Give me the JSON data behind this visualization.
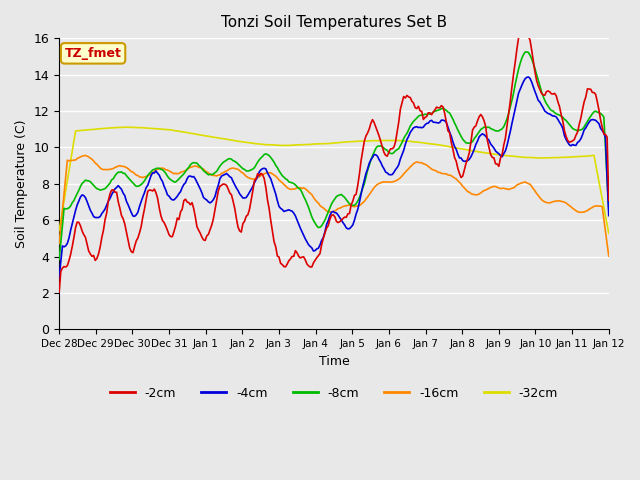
{
  "title": "Tonzi Soil Temperatures Set B",
  "xlabel": "Time",
  "ylabel": "Soil Temperature (C)",
  "ylim": [
    0,
    16
  ],
  "yticks": [
    0,
    2,
    4,
    6,
    8,
    10,
    12,
    14,
    16
  ],
  "annotation_label": "TZ_fmet",
  "annotation_bg": "#ffffcc",
  "annotation_border": "#cc9900",
  "annotation_text_color": "#cc0000",
  "series_colors": {
    "-2cm": "#dd0000",
    "-4cm": "#0000dd",
    "-8cm": "#00bb00",
    "-16cm": "#ff8800",
    "-32cm": "#dddd00"
  },
  "legend_labels": [
    "-2cm",
    "-4cm",
    "-8cm",
    "-16cm",
    "-32cm"
  ],
  "bg_color": "#e8e8e8",
  "plot_bg_color": "#e8e8e8",
  "grid_color": "#ffffff",
  "tick_labels": [
    "Dec 28",
    "Dec 29",
    "Dec 30",
    "Dec 31",
    "Jan 1",
    "Jan 2",
    "Jan 3",
    "Jan 4",
    "Jan 5",
    "Jan 6",
    "Jan 7",
    "Jan 8",
    "Jan 9",
    "Jan 10",
    "Jan 11",
    "Jan 12"
  ],
  "n_points": 336,
  "days": 14
}
